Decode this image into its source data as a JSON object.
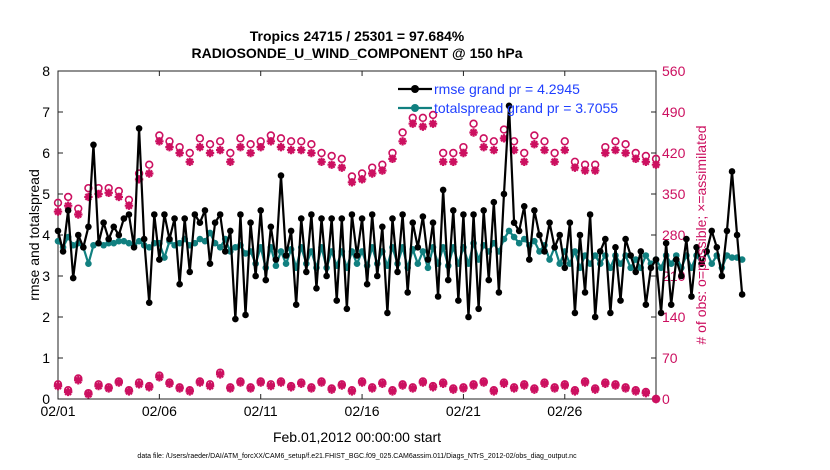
{
  "colors": {
    "rmse": "#000000",
    "spread": "#118080",
    "obs": "#cc1060",
    "legend_text": "#1f3fff",
    "axis": "#222222"
  },
  "chart_data": {
    "type": "line",
    "title": "Tropics 24715 / 25301 = 97.684%",
    "subtitle": "RADIOSONDE_U_WIND_COMPONENT @ 150 hPa",
    "xlabel": "Feb.01,2012 00:00:00 start",
    "ylabel": "rmse and totalspread",
    "ylabel_right": "# of obs: o=possible; ×=assimilated",
    "footer": "data file: /Users/raeder/DAI/ATM_forcXX/CAM6_setup/f.e21.FHIST_BGC.f09_025.CAM6assim.011/Diags_NTrS_2012-02/obs_diag_output.nc",
    "xlim": [
      0,
      29.5
    ],
    "ylim": [
      0,
      8
    ],
    "ylim_right": [
      0,
      560
    ],
    "x_ticks": [
      0,
      5,
      10,
      15,
      20,
      25
    ],
    "x_tick_labels": [
      "02/01",
      "02/06",
      "02/11",
      "02/16",
      "02/21",
      "02/26"
    ],
    "y_ticks": [
      0,
      1,
      2,
      3,
      4,
      5,
      6,
      7,
      8
    ],
    "y_tick_labels": [
      "0",
      "1",
      "2",
      "3",
      "4",
      "5",
      "6",
      "7",
      "8"
    ],
    "y_ticks_right": [
      0,
      70,
      140,
      210,
      280,
      350,
      420,
      490,
      560
    ],
    "y_tick_labels_right": [
      "0",
      "70",
      "140",
      "210",
      "280",
      "350",
      "420",
      "490",
      "560"
    ],
    "legend_position": "top-right",
    "step_days": 0.25,
    "series": [
      {
        "name": "rmse grand pr = 4.2945",
        "axis": "left",
        "values": [
          4.1,
          3.6,
          4.6,
          2.95,
          4.0,
          3.7,
          4.2,
          6.2,
          3.8,
          4.3,
          3.9,
          4.2,
          4.0,
          4.4,
          4.5,
          3.7,
          6.6,
          3.9,
          2.35,
          4.5,
          3.4,
          4.5,
          3.9,
          4.4,
          2.8,
          4.4,
          3.1,
          4.5,
          4.3,
          4.6,
          3.3,
          4.3,
          4.5,
          3.6,
          4.1,
          1.95,
          4.5,
          2.05,
          4.3,
          3.0,
          4.6,
          2.9,
          4.2,
          3.4,
          5.45,
          3.5,
          4.1,
          2.3,
          4.4,
          3.1,
          4.5,
          2.7,
          4.4,
          3.0,
          4.4,
          2.4,
          4.4,
          2.2,
          4.5,
          3.5,
          4.4,
          2.8,
          4.5,
          3.0,
          4.2,
          2.1,
          4.4,
          3.1,
          4.5,
          2.6,
          4.3,
          3.7,
          4.45,
          3.4,
          4.3,
          2.5,
          5.1,
          2.9,
          4.6,
          2.4,
          4.5,
          2.0,
          4.5,
          2.2,
          4.6,
          2.9,
          4.8,
          2.6,
          5.0,
          7.15,
          4.3,
          4.1,
          4.7,
          3.4,
          4.6,
          4.0,
          3.6,
          4.3,
          3.7,
          4.0,
          3.2,
          4.3,
          2.1,
          4.0,
          2.6,
          4.5,
          2.0,
          3.6,
          3.9,
          2.1,
          3.7,
          2.4,
          3.9,
          3.5,
          3.1,
          3.6,
          2.3,
          3.2,
          3.4,
          2.1,
          3.8,
          2.3,
          3.4,
          3.0,
          3.9,
          2.5,
          3.7,
          3.3,
          3.6,
          4.1,
          3.7,
          3.0,
          4.1,
          5.55,
          4.0,
          2.55
        ]
      },
      {
        "name": "totalspread grand pr = 3.7055",
        "axis": "left",
        "values": [
          3.85,
          3.7,
          3.95,
          3.75,
          3.8,
          3.7,
          3.3,
          3.75,
          3.8,
          3.75,
          3.8,
          3.8,
          3.85,
          3.85,
          3.8,
          3.75,
          3.85,
          3.75,
          3.7,
          3.8,
          3.8,
          3.45,
          3.85,
          3.75,
          3.8,
          3.9,
          3.75,
          3.8,
          3.9,
          3.85,
          4.05,
          3.8,
          3.7,
          3.9,
          3.6,
          3.7,
          3.75,
          3.55,
          3.6,
          3.3,
          3.7,
          3.2,
          3.7,
          3.25,
          3.6,
          3.3,
          3.65,
          3.2,
          3.7,
          3.3,
          3.6,
          3.2,
          3.7,
          3.2,
          3.6,
          3.25,
          3.6,
          3.2,
          3.6,
          3.3,
          3.6,
          3.25,
          3.7,
          3.3,
          3.6,
          3.25,
          3.7,
          3.3,
          3.7,
          3.2,
          3.65,
          3.3,
          3.6,
          3.2,
          3.7,
          3.3,
          3.7,
          3.25,
          3.7,
          3.3,
          3.7,
          3.3,
          3.8,
          3.4,
          3.75,
          3.6,
          3.8,
          3.6,
          3.9,
          4.1,
          3.95,
          3.8,
          3.9,
          3.75,
          3.85,
          3.6,
          3.75,
          3.4,
          3.7,
          3.3,
          3.6,
          3.3,
          3.6,
          3.2,
          3.5,
          3.3,
          3.5,
          3.3,
          3.5,
          3.2,
          3.5,
          3.3,
          3.5,
          3.2,
          3.4,
          3.2,
          3.5,
          3.3,
          3.4,
          3.2,
          3.5,
          3.3,
          3.5,
          3.2,
          3.5,
          3.2,
          3.5,
          3.3,
          3.6,
          3.3,
          3.5,
          3.2,
          3.5,
          3.45,
          3.45,
          3.4
        ]
      }
    ],
    "obs_counts": {
      "axis": "right",
      "x": [
        0,
        0.5,
        1,
        1.5,
        2,
        2.5,
        3,
        3.5,
        4,
        4.5,
        5,
        5.5,
        6,
        6.5,
        7,
        7.5,
        8,
        8.5,
        9,
        9.5,
        10,
        10.5,
        11,
        11.5,
        12,
        12.5,
        13,
        13.5,
        14,
        14.5,
        15,
        15.5,
        16,
        16.5,
        17,
        17.5,
        18,
        18.5,
        19,
        19.5,
        20,
        20.5,
        21,
        21.5,
        22,
        22.5,
        23,
        23.5,
        24,
        24.5,
        25,
        25.5,
        26,
        26.5,
        27,
        27.5,
        28,
        28.5,
        29,
        29.5
      ],
      "possible_high": [
        335,
        345,
        325,
        360,
        360,
        360,
        355,
        340,
        385,
        400,
        450,
        440,
        430,
        420,
        445,
        435,
        440,
        420,
        445,
        435,
        440,
        450,
        445,
        440,
        440,
        435,
        420,
        415,
        410,
        380,
        385,
        395,
        400,
        420,
        455,
        480,
        480,
        485,
        420,
        420,
        430,
        470,
        445,
        440,
        460,
        440,
        420,
        450,
        440,
        420,
        440,
        405,
        400,
        400,
        430,
        440,
        435,
        420,
        415,
        410
      ],
      "assimilated_high": [
        320,
        330,
        315,
        345,
        350,
        352,
        345,
        330,
        375,
        385,
        440,
        430,
        420,
        405,
        430,
        420,
        425,
        405,
        430,
        420,
        430,
        440,
        430,
        425,
        425,
        420,
        405,
        400,
        395,
        370,
        375,
        385,
        390,
        410,
        440,
        470,
        465,
        470,
        405,
        405,
        420,
        455,
        430,
        425,
        445,
        425,
        405,
        435,
        425,
        405,
        425,
        395,
        390,
        390,
        420,
        425,
        420,
        410,
        405,
        400
      ],
      "possible_low": [
        25,
        15,
        35,
        10,
        25,
        20,
        30,
        15,
        28,
        22,
        40,
        28,
        20,
        15,
        30,
        25,
        45,
        20,
        30,
        20,
        30,
        25,
        30,
        22,
        28,
        20,
        30,
        18,
        25,
        15,
        30,
        20,
        28,
        15,
        25,
        20,
        30,
        22,
        28,
        18,
        20,
        25,
        30,
        15,
        28,
        20,
        25,
        18,
        28,
        20,
        25,
        15,
        30,
        18,
        28,
        25,
        20,
        15,
        12,
        0
      ],
      "assimilated_low": [
        22,
        12,
        32,
        8,
        22,
        18,
        28,
        13,
        25,
        20,
        37,
        26,
        18,
        13,
        28,
        22,
        42,
        18,
        28,
        18,
        28,
        22,
        28,
        20,
        26,
        18,
        28,
        16,
        23,
        13,
        28,
        18,
        26,
        13,
        23,
        18,
        28,
        20,
        26,
        16,
        18,
        23,
        28,
        13,
        26,
        18,
        23,
        16,
        26,
        18,
        23,
        13,
        28,
        16,
        26,
        23,
        18,
        13,
        10,
        0
      ]
    }
  }
}
